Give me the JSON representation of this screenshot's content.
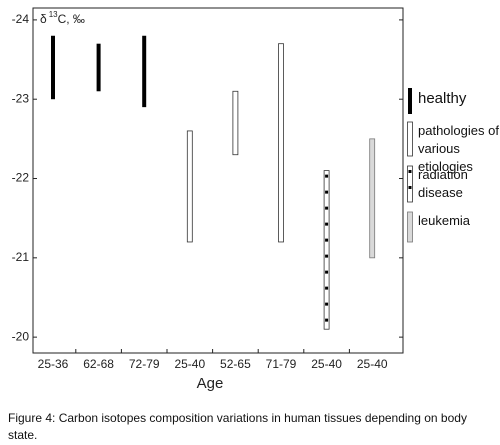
{
  "chart_data": {
    "type": "range_bar",
    "y_label": {
      "symbol": "δ",
      "superscript": "13",
      "unit": "C, ‰"
    },
    "x_label": "Age",
    "categories": [
      "25-36",
      "62-68",
      "72-79",
      "25-40",
      "52-65",
      "71-79",
      "25-40",
      "25-40"
    ],
    "ylim": [
      -24.15,
      -19.8
    ],
    "y_inverted": true,
    "yticks": [
      -24,
      -23,
      -22,
      -21,
      -20
    ],
    "series": [
      {
        "name": "healthy",
        "style": "solid",
        "color": "#000000",
        "start": [
          -23.8,
          -23.7,
          -23.8,
          null,
          null,
          null,
          null,
          null
        ],
        "end": [
          -23.0,
          -23.1,
          -22.9,
          null,
          null,
          null,
          null,
          null
        ]
      },
      {
        "name": "pathologies of various etiologies",
        "style": "outline",
        "color": "#ffffff",
        "start": [
          null,
          null,
          null,
          -22.6,
          -23.1,
          -23.7,
          null,
          null
        ],
        "end": [
          null,
          null,
          null,
          -21.2,
          -22.3,
          -21.2,
          null,
          null
        ]
      },
      {
        "name": "radiation disease",
        "style": "dashed",
        "color": "#ffffff",
        "start": [
          null,
          null,
          null,
          null,
          null,
          null,
          -22.1,
          null
        ],
        "end": [
          null,
          null,
          null,
          null,
          null,
          null,
          -20.1,
          null
        ]
      },
      {
        "name": "leukemia",
        "style": "gray",
        "color": "#d9d9d9",
        "start": [
          null,
          null,
          null,
          null,
          null,
          null,
          null,
          -22.5
        ],
        "end": [
          null,
          null,
          null,
          null,
          null,
          null,
          null,
          -21.0
        ]
      }
    ]
  },
  "caption": "Figure 4: Carbon isotopes composition variations in human tissues depending on body state."
}
